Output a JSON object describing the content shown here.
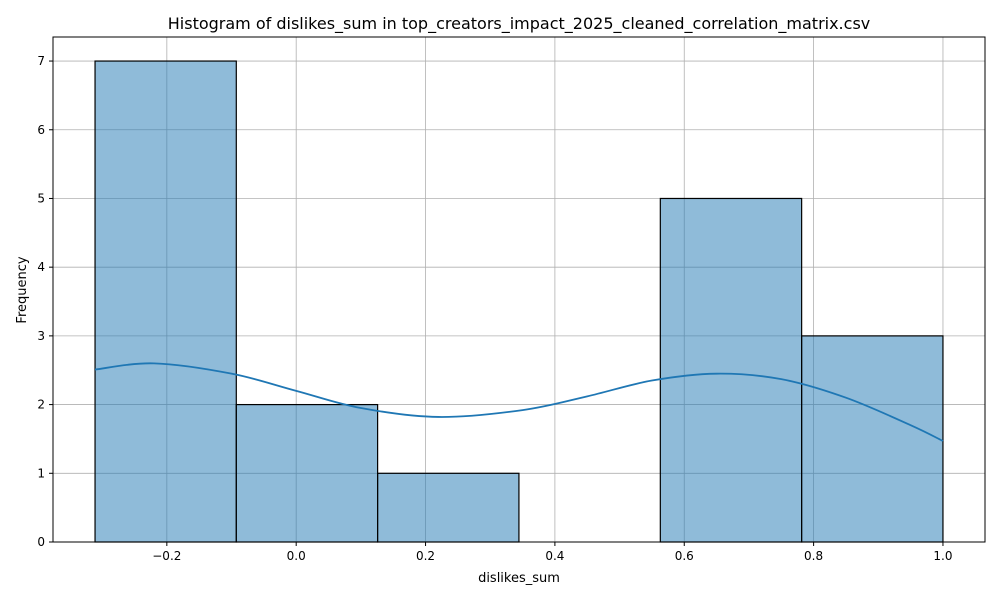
{
  "chart_data": {
    "type": "bar",
    "title": "Histogram of dislikes_sum in top_creators_impact_2025_cleaned_correlation_matrix.csv",
    "xlabel": "dislikes_sum",
    "ylabel": "Frequency",
    "xlim": [
      -0.376,
      1.065
    ],
    "ylim": [
      0,
      7.35
    ],
    "grid": true,
    "bar_color": "#1f77b4",
    "bar_opacity": 0.5,
    "kde_color": "#1f77b4",
    "bins": [
      {
        "x0": -0.311,
        "x1": -0.0926,
        "count": 7
      },
      {
        "x0": -0.0926,
        "x1": 0.1259,
        "count": 2
      },
      {
        "x0": 0.1259,
        "x1": 0.3444,
        "count": 1
      },
      {
        "x0": 0.3444,
        "x1": 0.563,
        "count": 0
      },
      {
        "x0": 0.563,
        "x1": 0.7815,
        "count": 5
      },
      {
        "x0": 0.7815,
        "x1": 1.0,
        "count": 3
      }
    ],
    "kde": {
      "x": [
        -0.311,
        -0.22,
        -0.1,
        0.0,
        0.1,
        0.22,
        0.35,
        0.45,
        0.55,
        0.65,
        0.75,
        0.85,
        0.95,
        1.0
      ],
      "y": [
        2.51,
        2.6,
        2.45,
        2.2,
        1.95,
        1.82,
        1.92,
        2.12,
        2.35,
        2.45,
        2.37,
        2.1,
        1.7,
        1.47
      ]
    },
    "x_ticks": [
      -0.2,
      0.0,
      0.2,
      0.4,
      0.6,
      0.8,
      1.0
    ],
    "x_tick_labels": [
      "−0.2",
      "0.0",
      "0.2",
      "0.4",
      "0.6",
      "0.8",
      "1.0"
    ],
    "y_ticks": [
      0,
      1,
      2,
      3,
      4,
      5,
      6,
      7
    ],
    "y_tick_labels": [
      "0",
      "1",
      "2",
      "3",
      "4",
      "5",
      "6",
      "7"
    ]
  }
}
